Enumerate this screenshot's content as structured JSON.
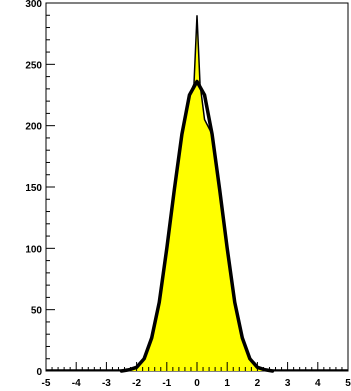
{
  "chart_data": {
    "type": "area",
    "title": "",
    "xlabel": "",
    "ylabel": "",
    "xlim": [
      -5,
      5
    ],
    "ylim": [
      0,
      300
    ],
    "x_ticks": [
      -5,
      -4,
      -3,
      -2,
      -1,
      0,
      1,
      2,
      3,
      4,
      5
    ],
    "x_tick_labels": [
      "-5",
      "-4",
      "-3",
      "-2",
      "-1",
      "0",
      "1",
      "2",
      "3",
      "4",
      "5"
    ],
    "y_ticks": [
      0,
      50,
      100,
      150,
      200,
      250,
      300
    ],
    "y_tick_labels": [
      "0",
      "50",
      "100",
      "150",
      "200",
      "250",
      "300"
    ],
    "grid": false,
    "histogram": {
      "x": [
        -2.5,
        -2.25,
        -2.0,
        -1.75,
        -1.5,
        -1.25,
        -1.0,
        -0.75,
        -0.5,
        -0.25,
        -0.1,
        0.0,
        0.1,
        0.25,
        0.5,
        0.75,
        1.0,
        1.25,
        1.5,
        1.75,
        2.0,
        2.25,
        2.5
      ],
      "y": [
        0,
        1,
        3,
        10,
        27,
        56,
        100,
        148,
        193,
        225,
        234,
        290,
        234,
        205,
        193,
        148,
        100,
        56,
        27,
        10,
        3,
        1,
        0
      ]
    },
    "fit": {
      "x": [
        -2.5,
        -2.25,
        -2.0,
        -1.75,
        -1.5,
        -1.25,
        -1.0,
        -0.75,
        -0.5,
        -0.25,
        0.0,
        0.25,
        0.5,
        0.75,
        1.0,
        1.25,
        1.5,
        1.75,
        2.0,
        2.25,
        2.5
      ],
      "y": [
        0,
        1,
        3,
        10,
        27,
        56,
        100,
        148,
        193,
        225,
        236,
        225,
        193,
        148,
        100,
        56,
        27,
        10,
        3,
        1,
        0
      ]
    },
    "colors": {
      "fill": "#ffff00",
      "histogram_line": "#000000",
      "fit_line": "#000000",
      "axis": "#000000"
    }
  }
}
